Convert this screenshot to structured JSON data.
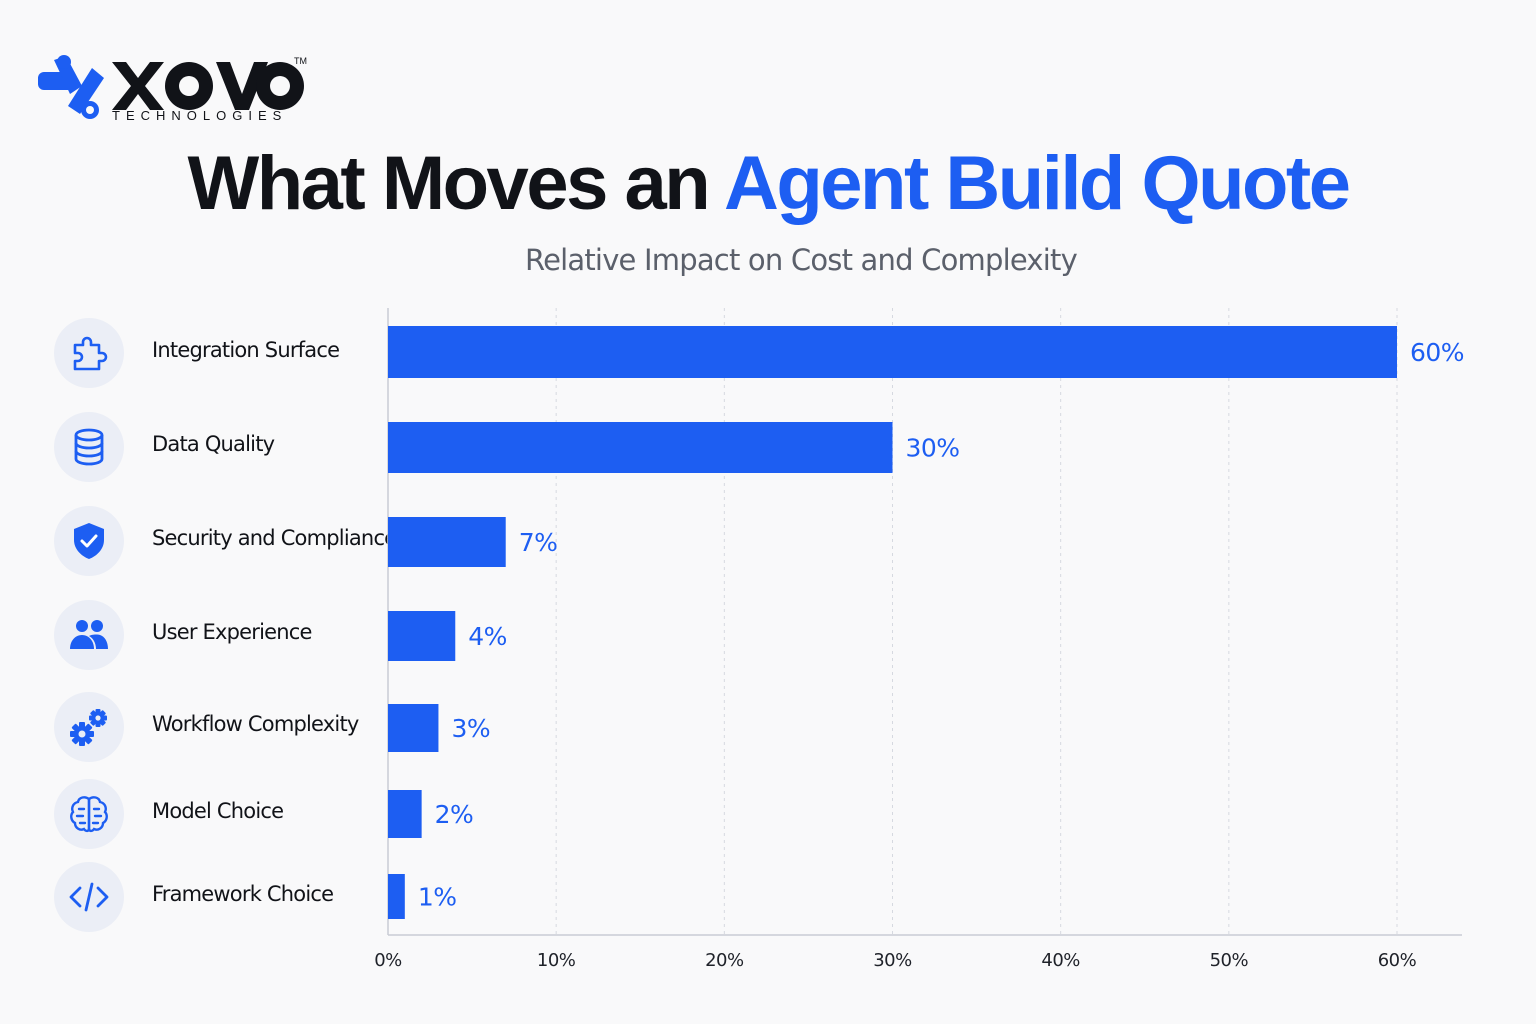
{
  "brand": {
    "name": "XOVO",
    "tagline": "TECHNOLOGIES",
    "trademark": "TM",
    "primary_color": "#1d5ef2"
  },
  "title_part1": "What Moves an",
  "title_part2": "Agent Build Quote",
  "subtitle": "Relative Impact on Cost and Complexity",
  "factors": [
    {
      "label": "Integration Surface",
      "icon": "puzzle-icon"
    },
    {
      "label": "Data Quality",
      "icon": "database-icon"
    },
    {
      "label": "Security and Compliance",
      "icon": "shield-check-icon"
    },
    {
      "label": "User Experience",
      "icon": "users-icon"
    },
    {
      "label": "Workflow Complexity",
      "icon": "gears-icon"
    },
    {
      "label": "Model Choice",
      "icon": "brain-icon"
    },
    {
      "label": "Framework Choice",
      "icon": "code-icon"
    }
  ],
  "chart_data": {
    "type": "bar",
    "orientation": "horizontal",
    "title": "What Moves an Agent Build Quote",
    "subtitle": "Relative Impact on Cost and Complexity",
    "categories": [
      "Integration Surface",
      "Data Quality",
      "Security and Compliance",
      "User Experience",
      "Workflow Complexity",
      "Model Choice",
      "Framework Choice"
    ],
    "values": [
      60,
      30,
      7,
      4,
      3,
      2,
      1
    ],
    "value_labels": [
      "60%",
      "30%",
      "7%",
      "4%",
      "3%",
      "2%",
      "1%"
    ],
    "xlim": [
      0,
      60
    ],
    "xticks": [
      0,
      10,
      20,
      30,
      40,
      50,
      60
    ],
    "xtick_labels": [
      "0%",
      "10%",
      "20%",
      "30%",
      "40%",
      "50%",
      "60%"
    ],
    "grid": "vertical dashed",
    "bar_color": "#1d5ef2",
    "label_color": "#1d5ef2"
  }
}
